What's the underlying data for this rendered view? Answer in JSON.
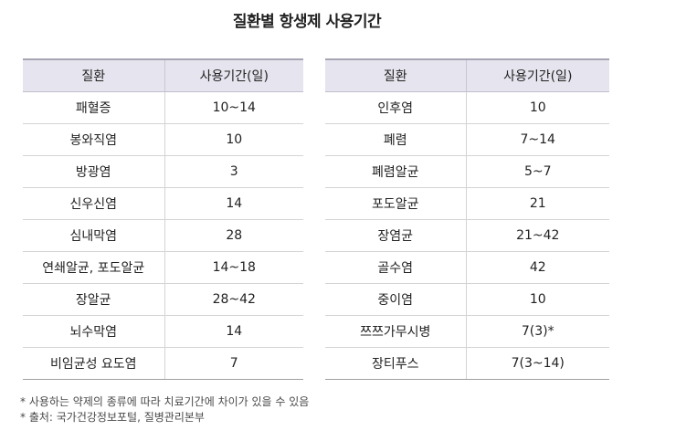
{
  "title": "질환별 항생제 사용기간",
  "tables": [
    {
      "headers": [
        "질환",
        "사용기간(일)"
      ],
      "rows": [
        [
          "패혈증",
          "10~14"
        ],
        [
          "봉와직염",
          "10"
        ],
        [
          "방광염",
          "3"
        ],
        [
          "신우신염",
          "14"
        ],
        [
          "심내막염",
          "28"
        ],
        [
          "연쇄알균, 포도알균",
          "14~18"
        ],
        [
          "장알균",
          "28~42"
        ],
        [
          "뇌수막염",
          "14"
        ],
        [
          "비임균성 요도염",
          "7"
        ]
      ]
    },
    {
      "headers": [
        "질환",
        "사용기간(일)"
      ],
      "rows": [
        [
          "인후염",
          "10"
        ],
        [
          "폐렴",
          "7~14"
        ],
        [
          "폐렴알균",
          "5~7"
        ],
        [
          "포도알균",
          "21"
        ],
        [
          "장염균",
          "21~42"
        ],
        [
          "골수염",
          "42"
        ],
        [
          "중이염",
          "10"
        ],
        [
          "쯔쯔가무시병",
          "7(3)*"
        ],
        [
          "장티푸스",
          "7(3~14)"
        ]
      ]
    }
  ],
  "notes": [
    "* 사용하는 약제의 종류에 따라 치료기간에 차이가 있을 수 있음",
    "* 출처: 국가건강정보포털, 질병관리본부"
  ]
}
